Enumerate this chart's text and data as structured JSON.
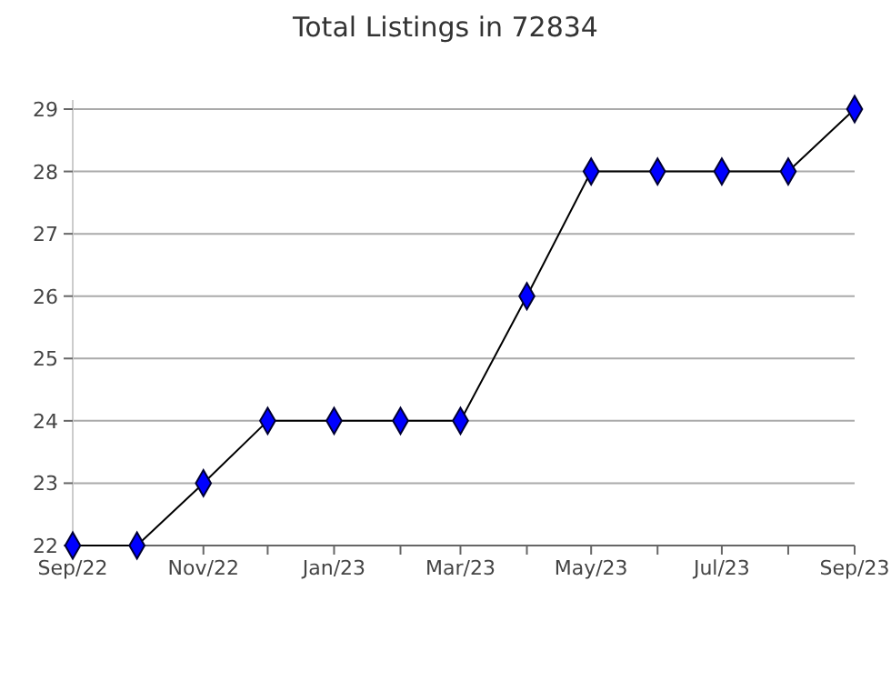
{
  "chart_data": {
    "type": "line",
    "title": "Total Listings in 72834",
    "x": [
      "2022-09",
      "2022-10",
      "2022-11",
      "2022-12",
      "2023-01",
      "2023-02",
      "2023-03",
      "2023-04",
      "2023-05",
      "2023-06",
      "2023-07",
      "2023-08",
      "2023-09"
    ],
    "series": [
      {
        "color": "#0000ff",
        "values": [
          22,
          22,
          23,
          24,
          24,
          24,
          24,
          26,
          28,
          28,
          28,
          28,
          29
        ]
      }
    ],
    "xlim": [
      "2022-09",
      "2023-09"
    ],
    "xticks": [
      {
        "value": "2022-09",
        "label": "Sep/22"
      },
      {
        "value": "2022-10",
        "label": null
      },
      {
        "value": "2022-11",
        "label": "Nov/22"
      },
      {
        "value": "2022-12",
        "label": null
      },
      {
        "value": "2023-01",
        "label": "Jan/23"
      },
      {
        "value": "2023-02",
        "label": null
      },
      {
        "value": "2023-03",
        "label": "Mar/23"
      },
      {
        "value": "2023-04",
        "label": null
      },
      {
        "value": "2023-05",
        "label": "May/23"
      },
      {
        "value": "2023-06",
        "label": null
      },
      {
        "value": "2023-07",
        "label": "Jul/23"
      },
      {
        "value": "2023-08",
        "label": null
      },
      {
        "value": "2023-09",
        "label": "Sep/23"
      }
    ],
    "ylim": [
      22,
      29
    ],
    "yticks": [
      22,
      23,
      24,
      25,
      26,
      27,
      28,
      29
    ],
    "grid": "y",
    "marker": "diamond",
    "line_style": "solid"
  }
}
